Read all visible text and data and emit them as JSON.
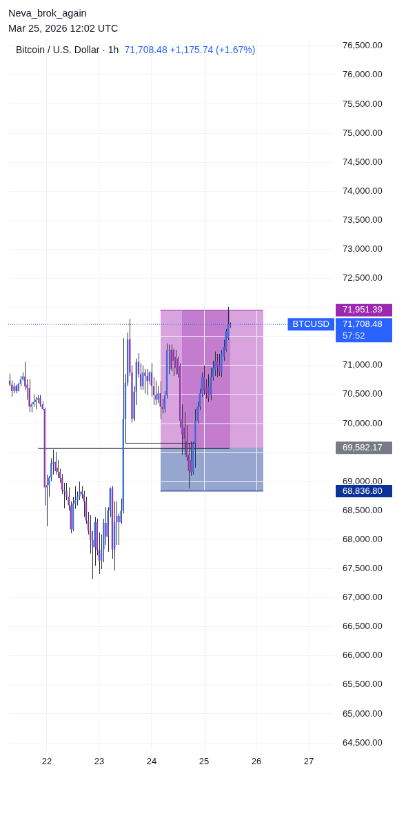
{
  "chart_data": {
    "type": "candlestick",
    "title": "Bitcoin / U.S. Dollar · 1h",
    "subtitle": "71,708.48 +1,175.74 (+1.67%)",
    "annotations": [
      "Neva_brok_again",
      "Mar 25, 2026 12:02 UTC",
      "57:52"
    ],
    "x": [
      "2026-03-21T07:00",
      "2026-03-21T08:00",
      "2026-03-21T09:00",
      "2026-03-21T10:00",
      "2026-03-21T11:00",
      "2026-03-21T12:00",
      "2026-03-21T13:00",
      "2026-03-21T14:00",
      "2026-03-21T15:00",
      "2026-03-21T16:00",
      "2026-03-21T17:00",
      "2026-03-21T18:00",
      "2026-03-21T19:00",
      "2026-03-21T20:00",
      "2026-03-21T21:00",
      "2026-03-21T22:00",
      "2026-03-21T23:00",
      "2026-03-22T00:00",
      "2026-03-22T01:00",
      "2026-03-22T02:00",
      "2026-03-22T03:00",
      "2026-03-22T04:00",
      "2026-03-22T05:00",
      "2026-03-22T06:00",
      "2026-03-22T07:00",
      "2026-03-22T08:00",
      "2026-03-22T09:00",
      "2026-03-22T10:00",
      "2026-03-22T11:00",
      "2026-03-22T12:00",
      "2026-03-22T13:00",
      "2026-03-22T14:00",
      "2026-03-22T15:00",
      "2026-03-22T16:00",
      "2026-03-22T17:00",
      "2026-03-22T18:00",
      "2026-03-22T19:00",
      "2026-03-22T20:00",
      "2026-03-22T21:00",
      "2026-03-22T22:00",
      "2026-03-22T23:00",
      "2026-03-23T00:00",
      "2026-03-23T01:00",
      "2026-03-23T02:00",
      "2026-03-23T03:00",
      "2026-03-23T04:00",
      "2026-03-23T05:00",
      "2026-03-23T06:00",
      "2026-03-23T07:00",
      "2026-03-23T08:00",
      "2026-03-23T09:00",
      "2026-03-23T10:00",
      "2026-03-23T11:00",
      "2026-03-23T12:00",
      "2026-03-23T13:00",
      "2026-03-23T14:00",
      "2026-03-23T15:00",
      "2026-03-23T16:00",
      "2026-03-23T17:00",
      "2026-03-23T18:00",
      "2026-03-23T19:00",
      "2026-03-23T20:00",
      "2026-03-23T21:00",
      "2026-03-23T22:00",
      "2026-03-23T23:00",
      "2026-03-24T00:00",
      "2026-03-24T01:00",
      "2026-03-24T02:00",
      "2026-03-24T03:00",
      "2026-03-24T04:00",
      "2026-03-24T05:00",
      "2026-03-24T06:00",
      "2026-03-24T07:00",
      "2026-03-24T08:00",
      "2026-03-24T09:00",
      "2026-03-24T10:00",
      "2026-03-24T11:00",
      "2026-03-24T12:00",
      "2026-03-24T13:00",
      "2026-03-24T14:00",
      "2026-03-24T15:00",
      "2026-03-24T16:00",
      "2026-03-24T17:00",
      "2026-03-24T18:00",
      "2026-03-24T19:00",
      "2026-03-24T20:00",
      "2026-03-24T21:00",
      "2026-03-24T22:00",
      "2026-03-24T23:00",
      "2026-03-25T00:00",
      "2026-03-25T01:00",
      "2026-03-25T02:00",
      "2026-03-25T03:00",
      "2026-03-25T04:00",
      "2026-03-25T05:00",
      "2026-03-25T06:00",
      "2026-03-25T07:00",
      "2026-03-25T08:00",
      "2026-03-25T09:00",
      "2026-03-25T10:00",
      "2026-03-25T11:00",
      "2026-03-25T12:00"
    ],
    "ohlc": [
      [
        70740,
        70860,
        70640,
        70670
      ],
      [
        70670,
        70740,
        70460,
        70560
      ],
      [
        70560,
        70700,
        70520,
        70640
      ],
      [
        70640,
        70670,
        70520,
        70560
      ],
      [
        70560,
        70700,
        70550,
        70680
      ],
      [
        70680,
        70820,
        70640,
        70760
      ],
      [
        70760,
        70880,
        70740,
        70810
      ],
      [
        70810,
        71060,
        70580,
        70640
      ],
      [
        70670,
        70760,
        70410,
        70610
      ],
      [
        70610,
        70760,
        70200,
        70290
      ],
      [
        70290,
        70370,
        70190,
        70330
      ],
      [
        70330,
        70500,
        70290,
        70370
      ],
      [
        70370,
        70460,
        70250,
        70410
      ],
      [
        70410,
        70490,
        70350,
        70440
      ],
      [
        70440,
        70490,
        70290,
        70330
      ],
      [
        70330,
        70380,
        70230,
        70250
      ],
      [
        70250,
        70270,
        68590,
        68900
      ],
      [
        68900,
        69120,
        68230,
        68940
      ],
      [
        68940,
        69100,
        68740,
        69070
      ],
      [
        69070,
        69400,
        69010,
        69320
      ],
      [
        69300,
        69550,
        69120,
        69340
      ],
      [
        69340,
        69510,
        69120,
        69180
      ],
      [
        69240,
        69370,
        69060,
        69170
      ],
      [
        69170,
        69220,
        68980,
        69060
      ],
      [
        69060,
        69130,
        68790,
        68860
      ],
      [
        68860,
        68980,
        68540,
        68830
      ],
      [
        68830,
        68980,
        68680,
        68740
      ],
      [
        68740,
        68900,
        68500,
        68590
      ],
      [
        68590,
        68660,
        68110,
        68180
      ],
      [
        68180,
        68740,
        68150,
        68620
      ],
      [
        68620,
        68920,
        68530,
        68680
      ],
      [
        68680,
        68830,
        68590,
        68740
      ],
      [
        68740,
        69000,
        68680,
        68830
      ],
      [
        68830,
        68920,
        68710,
        68780
      ],
      [
        68780,
        68840,
        68390,
        68660
      ],
      [
        68660,
        68740,
        68270,
        68330
      ],
      [
        68330,
        68480,
        68090,
        68150
      ],
      [
        68150,
        68420,
        67760,
        67990
      ],
      [
        67990,
        68150,
        67320,
        67870
      ],
      [
        67870,
        68390,
        67550,
        68300
      ],
      [
        68300,
        68360,
        67730,
        67820
      ],
      [
        67820,
        68120,
        67410,
        67640
      ],
      [
        67640,
        68090,
        67490,
        67830
      ],
      [
        67830,
        68360,
        67610,
        68290
      ],
      [
        68290,
        68560,
        67910,
        68050
      ],
      [
        68050,
        68560,
        67790,
        68500
      ],
      [
        68500,
        68900,
        68390,
        68880
      ],
      [
        68880,
        68920,
        67670,
        67830
      ],
      [
        67830,
        68660,
        67470,
        68300
      ],
      [
        68300,
        68660,
        67910,
        68410
      ],
      [
        68410,
        68450,
        67910,
        68300
      ],
      [
        68300,
        68710,
        68270,
        68500
      ],
      [
        68500,
        71470,
        68450,
        70080
      ],
      [
        70080,
        70850,
        69660,
        70700
      ],
      [
        70700,
        71570,
        70640,
        71450
      ],
      [
        71450,
        71800,
        70820,
        70880
      ],
      [
        70880,
        71000,
        70020,
        70080
      ],
      [
        70080,
        70640,
        70050,
        70550
      ],
      [
        70550,
        71120,
        70320,
        71060
      ],
      [
        71060,
        71210,
        70790,
        70850
      ],
      [
        70850,
        71040,
        70580,
        70640
      ],
      [
        70640,
        71000,
        70580,
        70880
      ],
      [
        70880,
        70940,
        70520,
        70820
      ],
      [
        70820,
        70940,
        70490,
        70730
      ],
      [
        70730,
        70900,
        70670,
        70880
      ],
      [
        70880,
        71040,
        70460,
        70640
      ],
      [
        70640,
        70800,
        70320,
        70490
      ],
      [
        70490,
        70730,
        70320,
        70410
      ],
      [
        70410,
        70640,
        70350,
        70520
      ],
      [
        70520,
        70730,
        70080,
        70290
      ],
      [
        70290,
        70430,
        70170,
        70250
      ],
      [
        70250,
        70560,
        70190,
        70490
      ],
      [
        70490,
        71380,
        70430,
        71260
      ],
      [
        71260,
        71360,
        70850,
        71270
      ],
      [
        71270,
        71360,
        70900,
        70940
      ],
      [
        71270,
        71290,
        70820,
        71080
      ],
      [
        71150,
        71270,
        70850,
        70960
      ],
      [
        71120,
        71150,
        70790,
        70850
      ],
      [
        71000,
        71040,
        69930,
        70050
      ],
      [
        70070,
        70330,
        69460,
        69810
      ],
      [
        69930,
        70200,
        69460,
        69730
      ],
      [
        69690,
        69970,
        69360,
        69420
      ],
      [
        69460,
        69660,
        68880,
        69180
      ],
      [
        69370,
        69690,
        69100,
        69160
      ],
      [
        69160,
        69690,
        69120,
        69660
      ],
      [
        69660,
        70250,
        69240,
        70050
      ],
      [
        70050,
        70370,
        69990,
        70290
      ],
      [
        70290,
        70600,
        70230,
        70520
      ],
      [
        70520,
        70880,
        70460,
        70800
      ],
      [
        70800,
        71000,
        70490,
        70560
      ],
      [
        70610,
        70760,
        70430,
        70520
      ],
      [
        70640,
        70850,
        70370,
        70440
      ],
      [
        70490,
        70960,
        70400,
        70800
      ],
      [
        70800,
        71080,
        70740,
        70960
      ],
      [
        70920,
        71240,
        70820,
        71080
      ],
      [
        71080,
        71200,
        70800,
        70960
      ],
      [
        71030,
        71200,
        70820,
        70880
      ],
      [
        70880,
        71270,
        70800,
        71200
      ],
      [
        71150,
        71440,
        71080,
        71320
      ],
      [
        71270,
        71630,
        71240,
        71590
      ],
      [
        71470,
        72010,
        71440,
        71710
      ],
      [
        71680,
        71740,
        71650,
        71708.48
      ]
    ],
    "colors": [
      "#8e3aaa",
      "#8e3aaa",
      "#3b6be0",
      "#8e3aaa",
      "#3b6be0",
      "#3b6be0",
      "#3b6be0",
      "#8e3aaa",
      "#8e3aaa",
      "#8e3aaa",
      "#3b6be0",
      "#3b6be0",
      "#3b6be0",
      "#3b6be0",
      "#8e3aaa",
      "#8e3aaa",
      "#8e3aaa",
      "#3b6be0",
      "#3b6be0",
      "#3b6be0",
      "#3b6be0",
      "#8e3aaa",
      "#8e3aaa",
      "#8e3aaa",
      "#8e3aaa",
      "#8e3aaa",
      "#8e3aaa",
      "#8e3aaa",
      "#8e3aaa",
      "#3b6be0",
      "#3b6be0",
      "#3b6be0",
      "#3b6be0",
      "#8e3aaa",
      "#8e3aaa",
      "#8e3aaa",
      "#8e3aaa",
      "#8e3aaa",
      "#8e3aaa",
      "#3b6be0",
      "#8e3aaa",
      "#8e3aaa",
      "#3b6be0",
      "#3b6be0",
      "#8e3aaa",
      "#3b6be0",
      "#3b6be0",
      "#8e3aaa",
      "#3b6be0",
      "#3b6be0",
      "#8e3aaa",
      "#3b6be0",
      "#3b6be0",
      "#3b6be0",
      "#3b6be0",
      "#8e3aaa",
      "#8e3aaa",
      "#3b6be0",
      "#3b6be0",
      "#8e3aaa",
      "#8e3aaa",
      "#3b6be0",
      "#8e3aaa",
      "#8e3aaa",
      "#3b6be0",
      "#8e3aaa",
      "#8e3aaa",
      "#8e3aaa",
      "#3b6be0",
      "#8e3aaa",
      "#8e3aaa",
      "#3b6be0",
      "#3b6be0",
      "#3b6be0",
      "#8e3aaa",
      "#8e3aaa",
      "#8e3aaa",
      "#8e3aaa",
      "#8e3aaa",
      "#8e3aaa",
      "#8e3aaa",
      "#8e3aaa",
      "#8e3aaa",
      "#8e3aaa",
      "#3b6be0",
      "#3b6be0",
      "#3b6be0",
      "#3b6be0",
      "#3b6be0",
      "#8e3aaa",
      "#8e3aaa",
      "#8e3aaa",
      "#3b6be0",
      "#3b6be0",
      "#3b6be0",
      "#8e3aaa",
      "#8e3aaa",
      "#3b6be0",
      "#3b6be0",
      "#3b6be0",
      "#3b6be0",
      "#3b6be0"
    ],
    "series": [
      {
        "type": "line",
        "axis": "y2",
        "x": [
          "2026-03-24T04:00",
          "2026-03-26T03:00"
        ],
        "values": [
          71951.39,
          71951.39
        ],
        "color": "#9c27b0"
      },
      {
        "type": "line",
        "axis": "y2",
        "x": [
          "2026-03-24T04:00",
          "2026-03-26T03:00"
        ],
        "values": [
          68836.8,
          68836.8
        ],
        "color": "#0c3299"
      },
      {
        "type": "line",
        "x": [
          "2026-03-21T20:00",
          "2026-03-25T11:40"
        ],
        "values": [
          69570,
          69570
        ],
        "color": "#131722"
      },
      {
        "type": "line",
        "x": [
          "2026-03-23T12:00",
          "2026-03-24T20:00"
        ],
        "values": [
          69660,
          69660
        ],
        "color": "#131722"
      }
    ],
    "xlim": [
      "2026-03-21T06:20",
      "2026-03-27T11:40"
    ],
    "xticks": [
      {
        "value": "2026-03-22",
        "label": "22"
      },
      {
        "value": "2026-03-23",
        "label": "23"
      },
      {
        "value": "2026-03-24",
        "label": "24"
      },
      {
        "value": "2026-03-25",
        "label": "25"
      },
      {
        "value": "2026-03-26",
        "label": "26"
      },
      {
        "value": "2026-03-27",
        "label": "27"
      }
    ],
    "ylim": [
      64370,
      76640
    ],
    "yticks": [
      {
        "value": 64500,
        "label": "64,500.00"
      },
      {
        "value": 65000,
        "label": "65,000.00"
      },
      {
        "value": 65500,
        "label": "65,500.00"
      },
      {
        "value": 66000,
        "label": "66,000.00"
      },
      {
        "value": 66500,
        "label": "66,500.00"
      },
      {
        "value": 67000,
        "label": "67,000.00"
      },
      {
        "value": 67500,
        "label": "67,500.00"
      },
      {
        "value": 68000,
        "label": "68,000.00"
      },
      {
        "value": 68500,
        "label": "68,500.00"
      },
      {
        "value": 69000,
        "label": "69,000.00"
      },
      {
        "value": 69500,
        "label": null
      },
      {
        "value": 70000,
        "label": "70,000.00"
      },
      {
        "value": 70500,
        "label": "70,500.00"
      },
      {
        "value": 71000,
        "label": "71,000.00"
      },
      {
        "value": 71500,
        "label": null
      },
      {
        "value": 72000,
        "label": null
      },
      {
        "value": 72500,
        "label": "72,500.00"
      },
      {
        "value": 73000,
        "label": "73,000.00"
      },
      {
        "value": 73500,
        "label": "73,500.00"
      },
      {
        "value": 74000,
        "label": "74,000.00"
      },
      {
        "value": 74500,
        "label": "74,500.00"
      },
      {
        "value": 75000,
        "label": "75,000.00"
      },
      {
        "value": 75500,
        "label": "75,500.00"
      },
      {
        "value": 76000,
        "label": "76,000.00"
      },
      {
        "value": 76500,
        "label": "76,500.00"
      }
    ],
    "y2lim": [
      64370,
      76640
    ],
    "y2ticks": [
      {
        "value": 71951.39,
        "label": "71,951.39"
      },
      {
        "value": 71708.48,
        "label": "71,708.48"
      },
      {
        "value": 69582.17,
        "label": "69,582.17"
      },
      {
        "value": 68836.8,
        "label": "68,836.80"
      }
    ],
    "grid": true,
    "ref_lines": [
      {
        "axis": "y",
        "value": 71708.48,
        "label": "BTCUSD",
        "color": "#2962ff",
        "line_style": "dotted"
      }
    ]
  }
}
